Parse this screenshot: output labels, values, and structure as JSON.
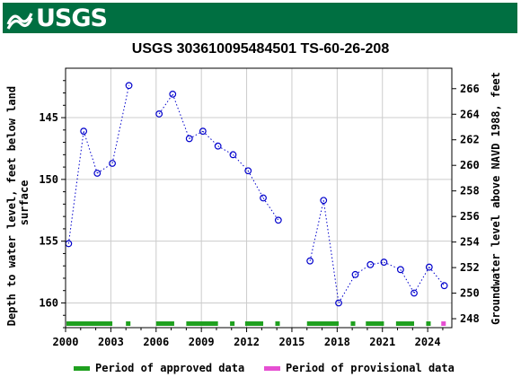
{
  "header": {
    "logo_text": "USGS"
  },
  "chart_data": {
    "type": "scatter",
    "title": "USGS 303610095484501 TS-60-26-208",
    "ylabel_left": "Depth to water level, feet below land surface",
    "ylabel_right": "Groundwater level above NAVD 1988, feet",
    "xlim": [
      2000,
      2025.6
    ],
    "ylim_left": [
      162.0,
      141.0
    ],
    "ylim_right": [
      247.3,
      267.6
    ],
    "x_ticks": [
      2000,
      2003,
      2006,
      2009,
      2012,
      2015,
      2018,
      2021,
      2024
    ],
    "x_tick_labels": [
      "2000",
      "2003",
      "2006",
      "2009",
      "2012",
      "2015",
      "2018",
      "2021",
      "2024"
    ],
    "y_left_ticks": [
      145,
      150,
      155,
      160
    ],
    "y_left_tick_labels": [
      "145",
      "150",
      "155",
      "160"
    ],
    "y_right_ticks": [
      248,
      250,
      252,
      254,
      256,
      258,
      260,
      262,
      264,
      266
    ],
    "y_right_tick_labels": [
      "248",
      "250",
      "252",
      "254",
      "256",
      "258",
      "260",
      "262",
      "264",
      "266"
    ],
    "grid": true,
    "series": [
      {
        "style": "point-dotted-line",
        "color": "#0000cc",
        "points": [
          {
            "x": 2000.2,
            "y": 155.2
          },
          {
            "x": 2001.2,
            "y": 146.1
          },
          {
            "x": 2002.1,
            "y": 149.5
          },
          {
            "x": 2003.1,
            "y": 148.7
          },
          {
            "x": 2004.2,
            "y": 142.4
          },
          {
            "x": 2006.2,
            "y": 144.7
          },
          {
            "x": 2007.1,
            "y": 143.1
          },
          {
            "x": 2008.2,
            "y": 146.7
          },
          {
            "x": 2009.1,
            "y": 146.1
          },
          {
            "x": 2010.1,
            "y": 147.3
          },
          {
            "x": 2011.1,
            "y": 148.0
          },
          {
            "x": 2012.1,
            "y": 149.3
          },
          {
            "x": 2013.1,
            "y": 151.5
          },
          {
            "x": 2014.1,
            "y": 153.3
          },
          {
            "x": 2016.2,
            "y": 156.6
          },
          {
            "x": 2017.1,
            "y": 151.7
          },
          {
            "x": 2018.1,
            "y": 160.0
          },
          {
            "x": 2019.2,
            "y": 157.7
          },
          {
            "x": 2020.2,
            "y": 156.9
          },
          {
            "x": 2021.1,
            "y": 156.7
          },
          {
            "x": 2022.2,
            "y": 157.3
          },
          {
            "x": 2023.1,
            "y": 159.2
          },
          {
            "x": 2024.1,
            "y": 157.1
          },
          {
            "x": 2025.1,
            "y": 158.6
          }
        ]
      }
    ],
    "periods": {
      "approved_color": "#1fa01f",
      "provisional_color": "#e64fd2",
      "approved": [
        [
          2000.0,
          2003.1
        ],
        [
          2004.0,
          2004.3
        ],
        [
          2006.0,
          2007.2
        ],
        [
          2008.0,
          2010.1
        ],
        [
          2010.9,
          2011.2
        ],
        [
          2011.9,
          2013.1
        ],
        [
          2013.9,
          2014.2
        ],
        [
          2016.0,
          2018.1
        ],
        [
          2018.9,
          2019.2
        ],
        [
          2019.9,
          2021.1
        ],
        [
          2021.9,
          2023.1
        ],
        [
          2023.9,
          2024.2
        ]
      ],
      "provisional": [
        [
          2024.9,
          2025.2
        ]
      ]
    },
    "legend": {
      "placement": "bottom",
      "approved_label": "Period of approved data",
      "provisional_label": "Period of provisional data"
    }
  }
}
